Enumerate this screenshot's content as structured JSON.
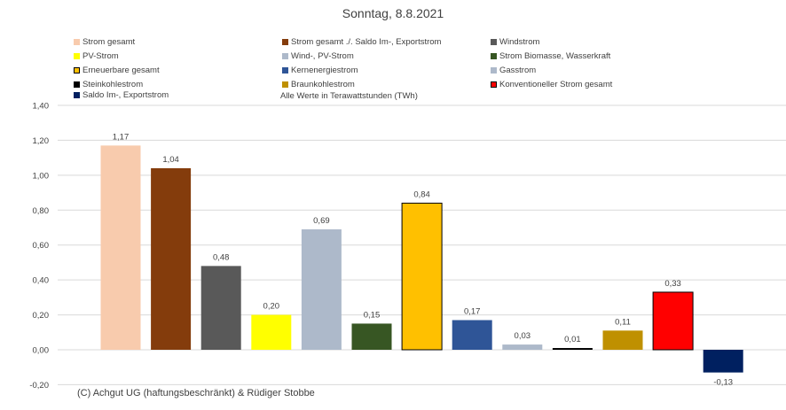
{
  "chart_data": {
    "type": "bar",
    "title": "Sonntag, 8.8.2021",
    "note": "Alle Werte in Terawattstunden (TWh)",
    "credit": "(C) Achgut UG (haftungsbeschränkt) & Rüdiger Stobbe",
    "ylim": [
      -0.2,
      1.4
    ],
    "yticks": [
      -0.2,
      0,
      0.2,
      0.4,
      0.6,
      0.8,
      1.0,
      1.2,
      1.4
    ],
    "ytick_labels": [
      "-0,20",
      "0,00",
      "0,20",
      "0,40",
      "0,60",
      "0,80",
      "1,00",
      "1,20",
      "1,40"
    ],
    "grid": true,
    "legend_position": "top",
    "categories": [
      "Strom gesamt",
      "Strom gesamt ./. Saldo Im-, Exportstrom",
      "Windstrom",
      "PV-Strom",
      "Wind-, PV-Strom",
      "Strom Biomasse, Wasserkraft",
      "Erneuerbare gesamt",
      "Kernenergiestrom",
      "Gasstrom",
      "Steinkohlestrom",
      "Braunkohlestrom",
      "Konventioneller Strom gesamt",
      "Saldo Im-, Exportstrom"
    ],
    "values": [
      1.17,
      1.04,
      0.48,
      0.2,
      0.69,
      0.15,
      0.84,
      0.17,
      0.03,
      0.01,
      0.11,
      0.33,
      -0.13
    ],
    "value_labels": [
      "1,17",
      "1,04",
      "0,48",
      "0,20",
      "0,69",
      "0,15",
      "0,84",
      "0,17",
      "0,03",
      "0,01",
      "0,11",
      "0,33",
      "-0,13"
    ],
    "colors": [
      "#F8CBAD",
      "#843C0C",
      "#595959",
      "#FFFF00",
      "#ADB9CA",
      "#375623",
      "#FFC000",
      "#2F5597",
      "#ADB9CA",
      "#000000",
      "#BF9000",
      "#FF0000",
      "#002060"
    ],
    "outlined": [
      false,
      false,
      false,
      false,
      false,
      false,
      true,
      false,
      false,
      false,
      false,
      true,
      false
    ]
  }
}
